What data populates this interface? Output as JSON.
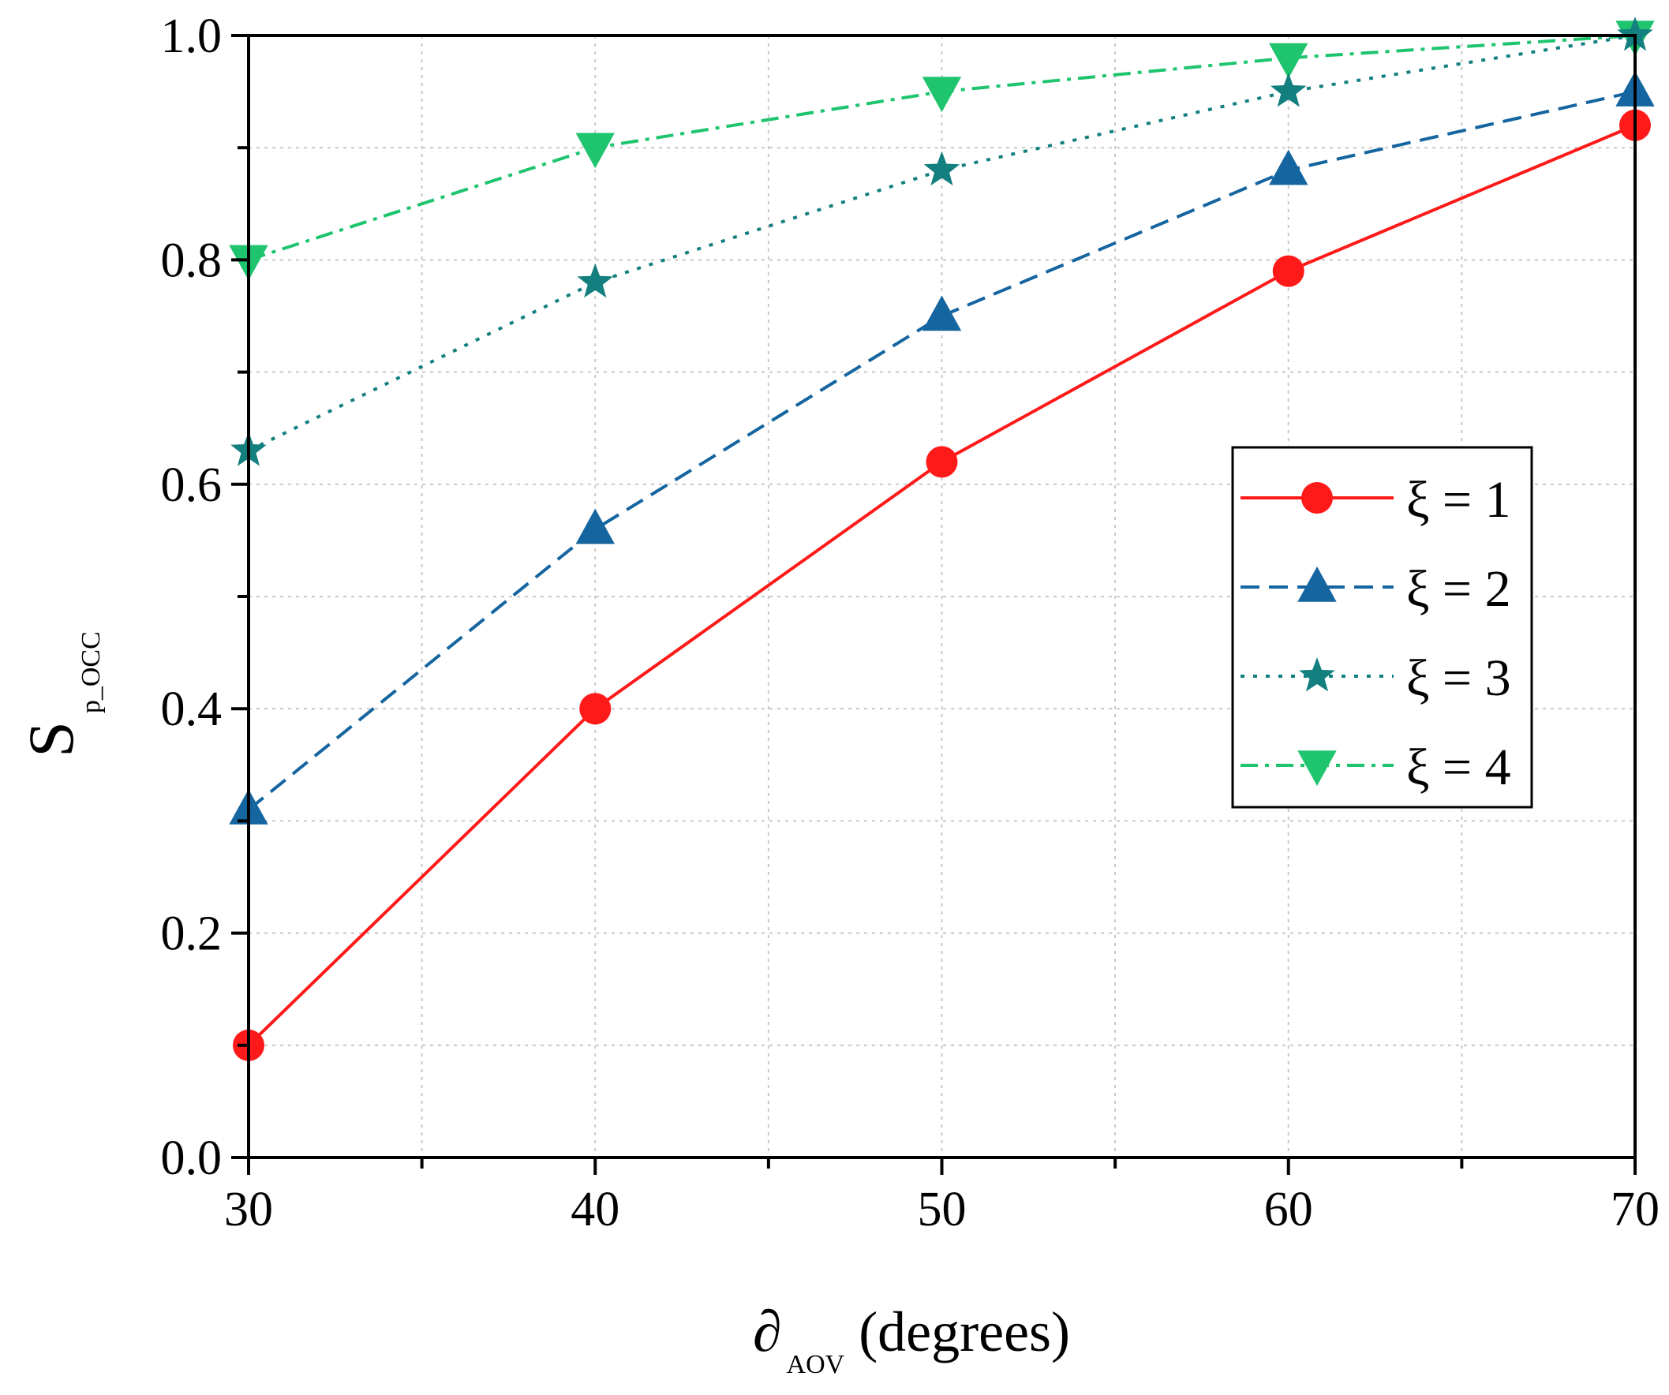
{
  "chart_data": {
    "type": "line",
    "title": "",
    "x": [
      30,
      40,
      50,
      60,
      70
    ],
    "xlim": [
      30,
      70
    ],
    "ylim": [
      0,
      1.0
    ],
    "x_ticks": [
      "30",
      "40",
      "50",
      "60",
      "70"
    ],
    "y_ticks": [
      "0.0",
      "0.2",
      "0.4",
      "0.6",
      "0.8",
      "1.0"
    ],
    "xlabel": {
      "symbol": "∂",
      "subscript": "AOV",
      "text": "(degrees)"
    },
    "ylabel": {
      "symbol": "S",
      "subscript": "p_OCC"
    },
    "grid": true,
    "legend_position": "right-middle",
    "series": [
      {
        "name": "ξ = 1",
        "values": [
          0.1,
          0.4,
          0.62,
          0.79,
          0.92
        ],
        "color": "#ff1a1a",
        "marker": "circle",
        "line_style": "solid"
      },
      {
        "name": "ξ = 2",
        "values": [
          0.31,
          0.56,
          0.75,
          0.88,
          0.95
        ],
        "color": "#1565a0",
        "marker": "triangle-up",
        "line_style": "dashed"
      },
      {
        "name": "ξ = 3",
        "values": [
          0.63,
          0.78,
          0.88,
          0.95,
          1.0
        ],
        "color": "#137f7f",
        "marker": "star",
        "line_style": "dotted"
      },
      {
        "name": "ξ = 4",
        "values": [
          0.8,
          0.9,
          0.95,
          0.98,
          1.0
        ],
        "color": "#1ec46e",
        "marker": "triangle-down",
        "line_style": "dashdot"
      }
    ]
  }
}
